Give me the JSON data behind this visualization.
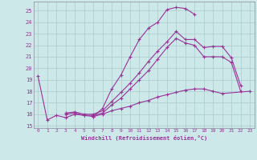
{
  "xlabel": "Windchill (Refroidissement éolien,°C)",
  "bg_color": "#cce8e8",
  "grid_color": "#aacccc",
  "line_color": "#993399",
  "xlim": [
    -0.5,
    23.5
  ],
  "ylim": [
    14.8,
    25.8
  ],
  "yticks": [
    15,
    16,
    17,
    18,
    19,
    20,
    21,
    22,
    23,
    24,
    25
  ],
  "xticks": [
    0,
    1,
    2,
    3,
    4,
    5,
    6,
    7,
    8,
    9,
    10,
    11,
    12,
    13,
    14,
    15,
    16,
    17,
    18,
    19,
    20,
    21,
    22,
    23
  ],
  "lines": [
    {
      "x": [
        0,
        1,
        2,
        3,
        4,
        5,
        6,
        7,
        8,
        9,
        10,
        11,
        12,
        13,
        14,
        15,
        16,
        17
      ],
      "y": [
        19.3,
        15.5,
        15.9,
        15.7,
        16.0,
        15.9,
        15.8,
        16.5,
        18.2,
        19.4,
        21.0,
        22.5,
        23.5,
        24.0,
        25.1,
        25.3,
        25.2,
        24.7
      ]
    },
    {
      "x": [
        3,
        4,
        5,
        6,
        7,
        8,
        9,
        10,
        11,
        12,
        13,
        14,
        15,
        16,
        17,
        18,
        19,
        20,
        21,
        22
      ],
      "y": [
        16.1,
        16.2,
        16.0,
        16.0,
        16.3,
        17.1,
        17.9,
        18.7,
        19.6,
        20.6,
        21.5,
        22.3,
        23.2,
        22.5,
        22.5,
        21.8,
        21.9,
        21.9,
        20.9,
        18.5
      ]
    },
    {
      "x": [
        3,
        4,
        5,
        6,
        7,
        8,
        9,
        10,
        11,
        12,
        13,
        14,
        15,
        16,
        17,
        18,
        19,
        20,
        21,
        22
      ],
      "y": [
        16.0,
        16.1,
        15.9,
        15.9,
        16.1,
        16.8,
        17.4,
        18.2,
        19.0,
        19.8,
        20.8,
        21.8,
        22.6,
        22.2,
        22.0,
        21.0,
        21.0,
        21.0,
        20.5,
        18.0
      ]
    },
    {
      "x": [
        6,
        7,
        8,
        9,
        10,
        11,
        12,
        13,
        14,
        15,
        16,
        17,
        18,
        19,
        20,
        23
      ],
      "y": [
        15.8,
        16.0,
        16.3,
        16.5,
        16.7,
        17.0,
        17.2,
        17.5,
        17.7,
        17.9,
        18.1,
        18.2,
        18.2,
        18.0,
        17.8,
        18.0
      ]
    }
  ]
}
